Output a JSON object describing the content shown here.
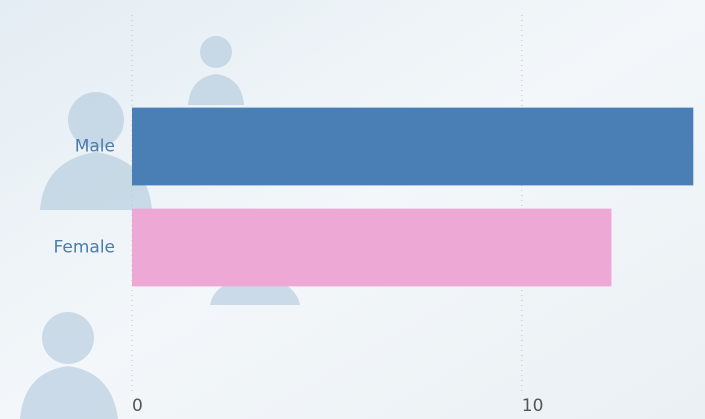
{
  "chart_data": {
    "type": "hbar",
    "categories": [
      "Male",
      "Female"
    ],
    "series": [
      {
        "name": null,
        "values": [
          14.4,
          12.3
        ]
      }
    ],
    "colors": [
      "#4a7fb5",
      "#eda8d5"
    ],
    "xlim": [
      0,
      14.7
    ],
    "xticks": [
      0,
      10
    ],
    "grid": true
  }
}
